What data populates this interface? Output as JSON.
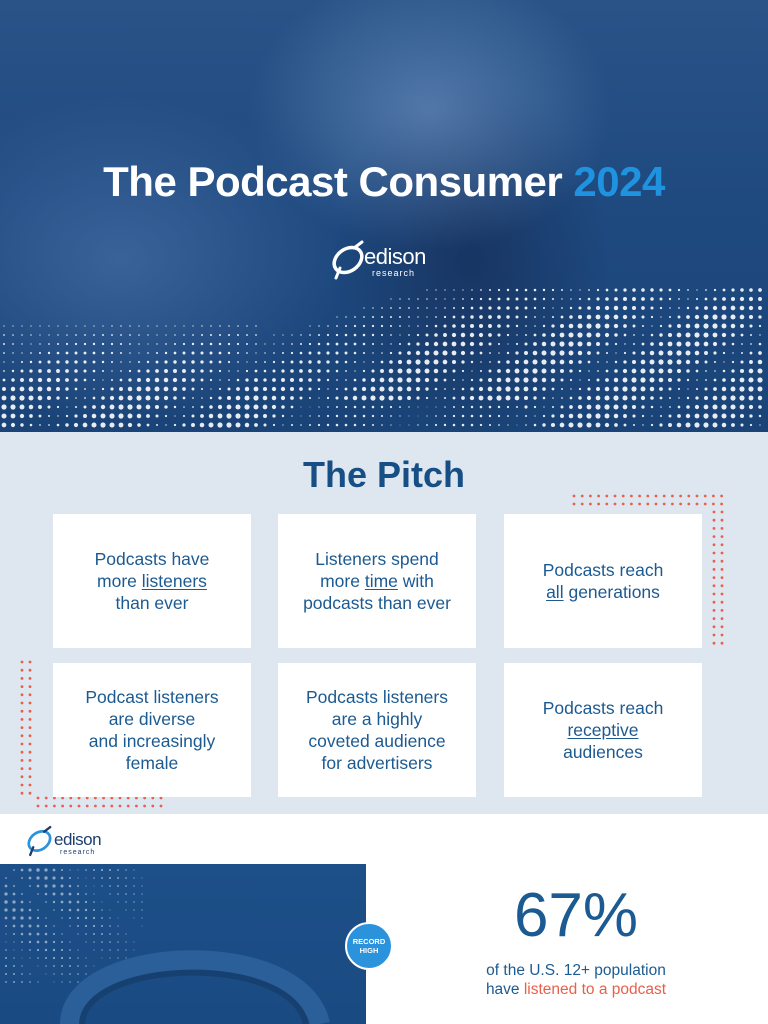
{
  "hero": {
    "title_main": "The Podcast Consumer",
    "title_year": "2024",
    "logo_word": "edison",
    "logo_sub": "research"
  },
  "pitch": {
    "title": "The Pitch",
    "cards": [
      {
        "before": "Podcasts have\nmore ",
        "underline": "listeners",
        "after": "\nthan ever"
      },
      {
        "before": "Listeners spend\nmore ",
        "underline": "time",
        "after": " with\npodcasts than ever"
      },
      {
        "before": "Podcasts reach\n",
        "underline": "all",
        "after": " generations"
      },
      {
        "before": "Podcast listeners\nare diverse\nand increasingly\nfemale",
        "underline": "",
        "after": ""
      },
      {
        "before": "Podcasts listeners\nare a highly\ncoveted audience\nfor advertisers",
        "underline": "",
        "after": ""
      },
      {
        "before": "Podcasts reach\n",
        "underline": "receptive",
        "after": "\naudiences"
      }
    ]
  },
  "bottom": {
    "logo_word": "edison",
    "logo_sub": "research",
    "badge": "RECORD\nHIGH",
    "stat_value": "67%",
    "stat_line1": "of the U.S. 12+ population",
    "stat_line2_prefix": "have ",
    "stat_line2_highlight": "listened to a podcast"
  },
  "colors": {
    "navy": "#174e86",
    "accent_blue": "#1f93e0",
    "accent_red": "#e8604c",
    "panel_bg": "#dee7ef"
  }
}
